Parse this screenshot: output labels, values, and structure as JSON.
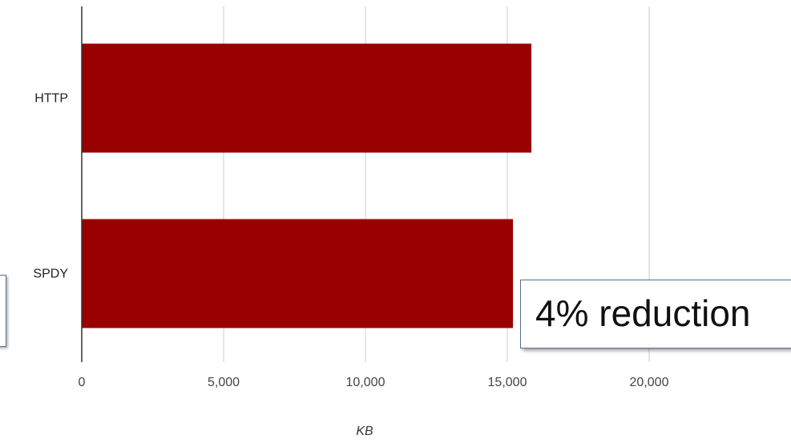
{
  "chart_data": {
    "type": "bar",
    "orientation": "horizontal",
    "categories": [
      "HTTP",
      "SPDY"
    ],
    "values": [
      15850,
      15200
    ],
    "xlabel": "KB",
    "ylabel": "",
    "xlim": [
      0,
      25000
    ],
    "xticks": [
      0,
      5000,
      10000,
      15000,
      20000
    ],
    "xtick_labels": [
      "0",
      "5,000",
      "10,000",
      "15,000",
      "20,000"
    ],
    "bar_color": "#990000",
    "grid": true,
    "annotation": "4% reduction"
  }
}
